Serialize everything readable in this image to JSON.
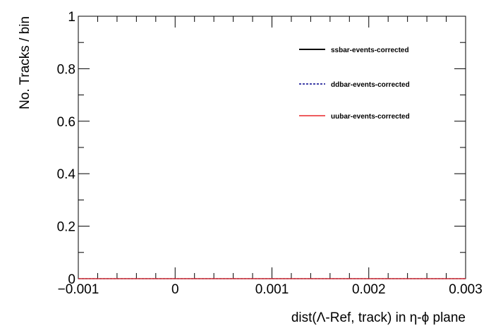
{
  "chart_data": {
    "type": "line",
    "xlabel": "dist(Λ-Ref, track) in η-ϕ plane",
    "ylabel": "No. Tracks / bin",
    "xlim": [
      -0.001,
      0.003
    ],
    "ylim": [
      0,
      1
    ],
    "x_ticks": [
      -0.001,
      0,
      0.001,
      0.002,
      0.003
    ],
    "x_tick_labels": [
      "−0.001",
      "0",
      "0.001",
      "0.002",
      "0.003"
    ],
    "y_ticks": [
      0,
      0.2,
      0.4,
      0.6,
      0.8,
      1
    ],
    "y_tick_labels": [
      "0",
      "0.2",
      "0.4",
      "0.6",
      "0.8",
      "1"
    ],
    "grid": false,
    "legend_position": "top-right",
    "series": [
      {
        "name": "ssbar-events-corrected",
        "color": "#000000",
        "style": "solid",
        "x": [
          -0.001,
          0.003
        ],
        "y": [
          0,
          0
        ]
      },
      {
        "name": "ddbar-events-corrected",
        "color": "#00008b",
        "style": "dashed",
        "x": [
          -0.001,
          0.003
        ],
        "y": [
          0,
          0
        ]
      },
      {
        "name": "uubar-events-corrected",
        "color": "#e8272a",
        "style": "solid",
        "x": [
          -0.001,
          0.003
        ],
        "y": [
          0,
          0
        ]
      }
    ]
  }
}
